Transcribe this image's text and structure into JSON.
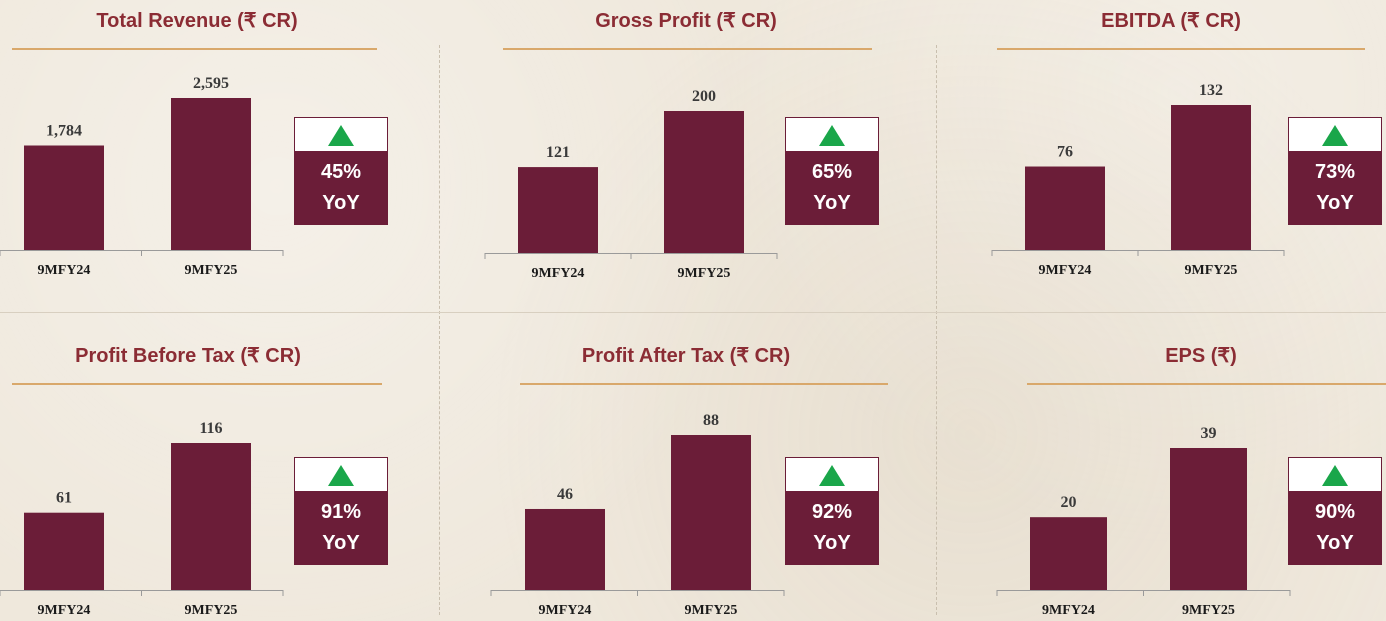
{
  "theme": {
    "bar_color": "#6b1d38",
    "title_color": "#8b2c34",
    "rule_color": "#d9a86b",
    "arrow_color": "#1aa64a"
  },
  "chart_data": [
    {
      "type": "bar",
      "title": "Total Revenue (₹ CR)",
      "categories": [
        "9MFY24",
        "9MFY25"
      ],
      "values": [
        1784,
        2595
      ],
      "value_labels": [
        "1,784",
        "2,595"
      ],
      "yoy": "45%",
      "yoy_unit": "YoY"
    },
    {
      "type": "bar",
      "title": "Gross Profit (₹ CR)",
      "categories": [
        "9MFY24",
        "9MFY25"
      ],
      "values": [
        121,
        200
      ],
      "value_labels": [
        "121",
        "200"
      ],
      "yoy": "65%",
      "yoy_unit": "YoY"
    },
    {
      "type": "bar",
      "title": "EBITDA (₹ CR)",
      "categories": [
        "9MFY24",
        "9MFY25"
      ],
      "values": [
        76,
        132
      ],
      "value_labels": [
        "76",
        "132"
      ],
      "yoy": "73%",
      "yoy_unit": "YoY"
    },
    {
      "type": "bar",
      "title": "Profit Before Tax (₹ CR)",
      "categories": [
        "9MFY24",
        "9MFY25"
      ],
      "values": [
        61,
        116
      ],
      "value_labels": [
        "61",
        "116"
      ],
      "yoy": "91%",
      "yoy_unit": "YoY"
    },
    {
      "type": "bar",
      "title": "Profit After Tax (₹ CR)",
      "categories": [
        "9MFY24",
        "9MFY25"
      ],
      "values": [
        46,
        88
      ],
      "value_labels": [
        "46",
        "88"
      ],
      "yoy": "92%",
      "yoy_unit": "YoY"
    },
    {
      "type": "bar",
      "title": "EPS (₹)",
      "categories": [
        "9MFY24",
        "9MFY25"
      ],
      "values": [
        20,
        39
      ],
      "value_labels": [
        "20",
        "39"
      ],
      "yoy": "90%",
      "yoy_unit": "YoY"
    }
  ]
}
